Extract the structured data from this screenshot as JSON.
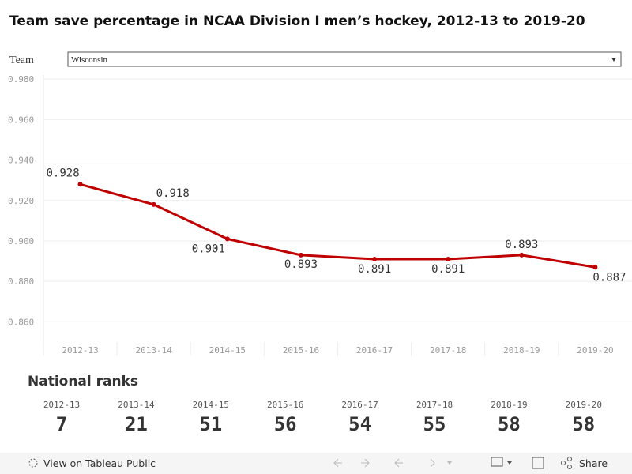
{
  "title": "Team save percentage in NCAA Division I men’s hockey, 2012-13 to 2019-20",
  "filter": {
    "label": "Team",
    "value": "Wisconsin"
  },
  "chart_data": {
    "type": "line",
    "categories": [
      "2012-13",
      "2013-14",
      "2014-15",
      "2015-16",
      "2016-17",
      "2017-18",
      "2018-19",
      "2019-20"
    ],
    "values": [
      0.928,
      0.918,
      0.901,
      0.893,
      0.891,
      0.891,
      0.893,
      0.887
    ],
    "color": "#c00000",
    "ylim": [
      0.85,
      0.982
    ],
    "yticks": [
      {
        "value": 0.86,
        "label": "0.860"
      },
      {
        "value": 0.88,
        "label": "0.880"
      },
      {
        "value": 0.9,
        "label": "0.900"
      },
      {
        "value": 0.92,
        "label": "0.920"
      },
      {
        "value": 0.94,
        "label": "0.940"
      },
      {
        "value": 0.96,
        "label": "0.960"
      },
      {
        "value": 0.98,
        "label": "0.980"
      }
    ],
    "grid": true
  },
  "ranks": {
    "title": "National ranks",
    "values": [
      7,
      21,
      51,
      56,
      54,
      55,
      58,
      58
    ]
  },
  "footer": {
    "view": "View on Tableau Public",
    "share": "Share"
  }
}
